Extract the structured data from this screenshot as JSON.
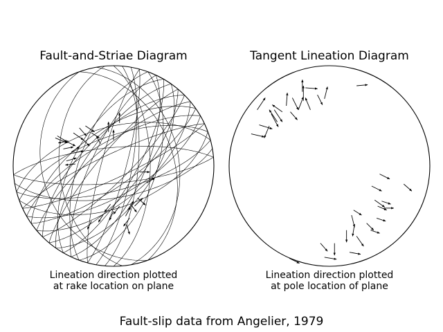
{
  "figure": {
    "suptitle": "Fault-slip data from Angelier, 1979"
  },
  "chart_data": [
    {
      "type": "stereonet",
      "title": "Fault-and-Striae Diagram",
      "caption_lines": [
        "Lineation direction plotted",
        "at rake location on plane"
      ],
      "planes": [
        {
          "strike": 0,
          "dip": 60
        },
        {
          "strike": 5,
          "dip": 70
        },
        {
          "strike": 10,
          "dip": 75
        },
        {
          "strike": 15,
          "dip": 80
        },
        {
          "strike": 20,
          "dip": 55
        },
        {
          "strike": 25,
          "dip": 65
        },
        {
          "strike": 30,
          "dip": 72
        },
        {
          "strike": 35,
          "dip": 58
        },
        {
          "strike": 40,
          "dip": 68
        },
        {
          "strike": 45,
          "dip": 78
        },
        {
          "strike": 50,
          "dip": 62
        },
        {
          "strike": 55,
          "dip": 74
        },
        {
          "strike": 60,
          "dip": 66
        },
        {
          "strike": 65,
          "dip": 80
        },
        {
          "strike": 70,
          "dip": 56
        },
        {
          "strike": 75,
          "dip": 70
        },
        {
          "strike": 80,
          "dip": 64
        },
        {
          "strike": 85,
          "dip": 76
        },
        {
          "strike": 200,
          "dip": 62
        },
        {
          "strike": 205,
          "dip": 72
        },
        {
          "strike": 210,
          "dip": 58
        },
        {
          "strike": 215,
          "dip": 68
        },
        {
          "strike": 220,
          "dip": 78
        },
        {
          "strike": 225,
          "dip": 64
        },
        {
          "strike": 230,
          "dip": 74
        },
        {
          "strike": 235,
          "dip": 60
        },
        {
          "strike": 240,
          "dip": 70
        },
        {
          "strike": 245,
          "dip": 80
        },
        {
          "strike": 250,
          "dip": 66
        },
        {
          "strike": 255,
          "dip": 58
        },
        {
          "strike": 340,
          "dip": 40
        },
        {
          "strike": 350,
          "dip": 35
        },
        {
          "strike": 175,
          "dip": 45
        },
        {
          "strike": 160,
          "dip": 30
        },
        {
          "strike": 195,
          "dip": 80
        },
        {
          "strike": 265,
          "dip": 75
        }
      ],
      "arrows_normalized": [
        {
          "x": -0.58,
          "y": 0.28,
          "dx": 0.12,
          "dy": -0.05
        },
        {
          "x": -0.5,
          "y": 0.26,
          "dx": 0.12,
          "dy": -0.06
        },
        {
          "x": -0.4,
          "y": 0.33,
          "dx": 0.1,
          "dy": -0.07
        },
        {
          "x": -0.32,
          "y": 0.28,
          "dx": 0.08,
          "dy": -0.08
        },
        {
          "x": -0.22,
          "y": 0.33,
          "dx": 0.08,
          "dy": -0.05
        },
        {
          "x": -0.13,
          "y": 0.22,
          "dx": -0.04,
          "dy": 0.08
        },
        {
          "x": -0.05,
          "y": 0.34,
          "dx": 0.0,
          "dy": 0.1
        },
        {
          "x": 0.0,
          "y": 0.26,
          "dx": 0.0,
          "dy": 0.1
        },
        {
          "x": 0.06,
          "y": 0.43,
          "dx": 0.0,
          "dy": 0.1
        },
        {
          "x": -0.45,
          "y": 0.25,
          "dx": -0.1,
          "dy": -0.02
        },
        {
          "x": -0.5,
          "y": 0.17,
          "dx": 0.1,
          "dy": 0.02
        },
        {
          "x": -0.47,
          "y": 0.05,
          "dx": 0.1,
          "dy": 0.03
        },
        {
          "x": -0.42,
          "y": 0.14,
          "dx": 0.08,
          "dy": 0.05
        },
        {
          "x": -0.38,
          "y": 0.02,
          "dx": -0.1,
          "dy": -0.01
        },
        {
          "x": -0.56,
          "y": 0.3,
          "dx": 0.1,
          "dy": -0.06
        },
        {
          "x": -0.34,
          "y": 0.38,
          "dx": 0.07,
          "dy": -0.08
        },
        {
          "x": 0.26,
          "y": -0.06,
          "dx": 0.1,
          "dy": 0.0
        },
        {
          "x": 0.33,
          "y": -0.17,
          "dx": 0.08,
          "dy": 0.05
        },
        {
          "x": 0.24,
          "y": -0.32,
          "dx": 0.08,
          "dy": -0.07
        },
        {
          "x": 0.17,
          "y": -0.38,
          "dx": 0.06,
          "dy": -0.08
        },
        {
          "x": 0.21,
          "y": -0.4,
          "dx": 0.08,
          "dy": 0.08
        },
        {
          "x": 0.14,
          "y": -0.44,
          "dx": 0.06,
          "dy": 0.09
        },
        {
          "x": 0.12,
          "y": -0.5,
          "dx": 0.05,
          "dy": 0.09
        },
        {
          "x": 0.16,
          "y": -0.52,
          "dx": -0.06,
          "dy": -0.08
        },
        {
          "x": 0.06,
          "y": -0.4,
          "dx": -0.06,
          "dy": -0.08
        },
        {
          "x": -0.03,
          "y": -0.38,
          "dx": -0.06,
          "dy": -0.08
        },
        {
          "x": 0.0,
          "y": -0.45,
          "dx": -0.04,
          "dy": -0.09
        },
        {
          "x": -0.1,
          "y": -0.48,
          "dx": -0.05,
          "dy": -0.08
        },
        {
          "x": -0.22,
          "y": -0.55,
          "dx": -0.04,
          "dy": -0.08
        },
        {
          "x": 0.13,
          "y": -0.58,
          "dx": 0.03,
          "dy": -0.1
        },
        {
          "x": -0.4,
          "y": 0.13,
          "dx": 0.1,
          "dy": 0.02
        },
        {
          "x": -0.28,
          "y": 0.4,
          "dx": 0.09,
          "dy": -0.06
        }
      ]
    },
    {
      "type": "stereonet",
      "title": "Tangent Lineation Diagram",
      "caption_lines": [
        "Lineation direction plotted",
        "at pole location of plane"
      ],
      "arrows_normalized": [
        {
          "x": -0.72,
          "y": 0.56,
          "dx": 0.08,
          "dy": 0.12
        },
        {
          "x": -0.7,
          "y": 0.41,
          "dx": 0.13,
          "dy": -0.04
        },
        {
          "x": -0.78,
          "y": 0.32,
          "dx": 0.13,
          "dy": -0.03
        },
        {
          "x": -0.6,
          "y": 0.4,
          "dx": -0.05,
          "dy": -0.12
        },
        {
          "x": -0.58,
          "y": 0.52,
          "dx": 0.07,
          "dy": -0.13
        },
        {
          "x": -0.55,
          "y": 0.56,
          "dx": 0.08,
          "dy": -0.12
        },
        {
          "x": -0.52,
          "y": 0.44,
          "dx": -0.08,
          "dy": 0.12
        },
        {
          "x": -0.47,
          "y": 0.54,
          "dx": -0.1,
          "dy": 0.07
        },
        {
          "x": -0.39,
          "y": 0.54,
          "dx": 0.07,
          "dy": -0.08
        },
        {
          "x": -0.43,
          "y": 0.6,
          "dx": 0.01,
          "dy": 0.13
        },
        {
          "x": -0.37,
          "y": 0.68,
          "dx": 0.06,
          "dy": -0.12
        },
        {
          "x": -0.31,
          "y": 0.56,
          "dx": 0.05,
          "dy": 0.13
        },
        {
          "x": -0.26,
          "y": 0.65,
          "dx": 0.0,
          "dy": 0.15
        },
        {
          "x": -0.19,
          "y": 0.56,
          "dx": -0.05,
          "dy": 0.12
        },
        {
          "x": -0.27,
          "y": 0.74,
          "dx": 0.0,
          "dy": 0.12
        },
        {
          "x": -0.12,
          "y": 0.71,
          "dx": 0.05,
          "dy": -0.1
        },
        {
          "x": -0.24,
          "y": 0.78,
          "dx": 0.12,
          "dy": -0.01
        },
        {
          "x": -0.05,
          "y": 0.67,
          "dx": 0.03,
          "dy": 0.12
        },
        {
          "x": 0.27,
          "y": 0.8,
          "dx": 0.11,
          "dy": 0.01
        },
        {
          "x": 0.5,
          "y": -0.08,
          "dx": 0.1,
          "dy": -0.05
        },
        {
          "x": 0.42,
          "y": -0.2,
          "dx": 0.1,
          "dy": -0.05
        },
        {
          "x": 0.45,
          "y": -0.34,
          "dx": 0.1,
          "dy": -0.07
        },
        {
          "x": 0.52,
          "y": -0.35,
          "dx": 0.09,
          "dy": -0.03
        },
        {
          "x": 0.48,
          "y": -0.4,
          "dx": 0.09,
          "dy": -0.04
        },
        {
          "x": 0.54,
          "y": -0.42,
          "dx": 0.1,
          "dy": 0.0
        },
        {
          "x": 0.74,
          "y": -0.18,
          "dx": 0.08,
          "dy": -0.07
        },
        {
          "x": 0.24,
          "y": -0.44,
          "dx": 0.08,
          "dy": -0.05
        },
        {
          "x": 0.47,
          "y": -0.52,
          "dx": 0.09,
          "dy": -0.03
        },
        {
          "x": 0.37,
          "y": -0.57,
          "dx": 0.07,
          "dy": -0.07
        },
        {
          "x": 0.41,
          "y": -0.64,
          "dx": 0.09,
          "dy": -0.03
        },
        {
          "x": 0.22,
          "y": -0.49,
          "dx": 0.03,
          "dy": -0.12
        },
        {
          "x": 0.25,
          "y": -0.58,
          "dx": -0.02,
          "dy": -0.12
        },
        {
          "x": 0.17,
          "y": -0.64,
          "dx": 0.0,
          "dy": -0.12
        },
        {
          "x": 0.27,
          "y": -0.7,
          "dx": 0.07,
          "dy": -0.1
        },
        {
          "x": -0.09,
          "y": -0.77,
          "dx": 0.07,
          "dy": -0.08
        },
        {
          "x": 0.05,
          "y": -0.77,
          "dx": 0.0,
          "dy": -0.12
        },
        {
          "x": 0.2,
          "y": -0.86,
          "dx": 0.11,
          "dy": -0.02
        },
        {
          "x": -0.05,
          "y": -0.91,
          "dx": 0.12,
          "dy": -0.02
        },
        {
          "x": -0.4,
          "y": -0.92,
          "dx": 0.1,
          "dy": -0.05
        }
      ]
    }
  ]
}
